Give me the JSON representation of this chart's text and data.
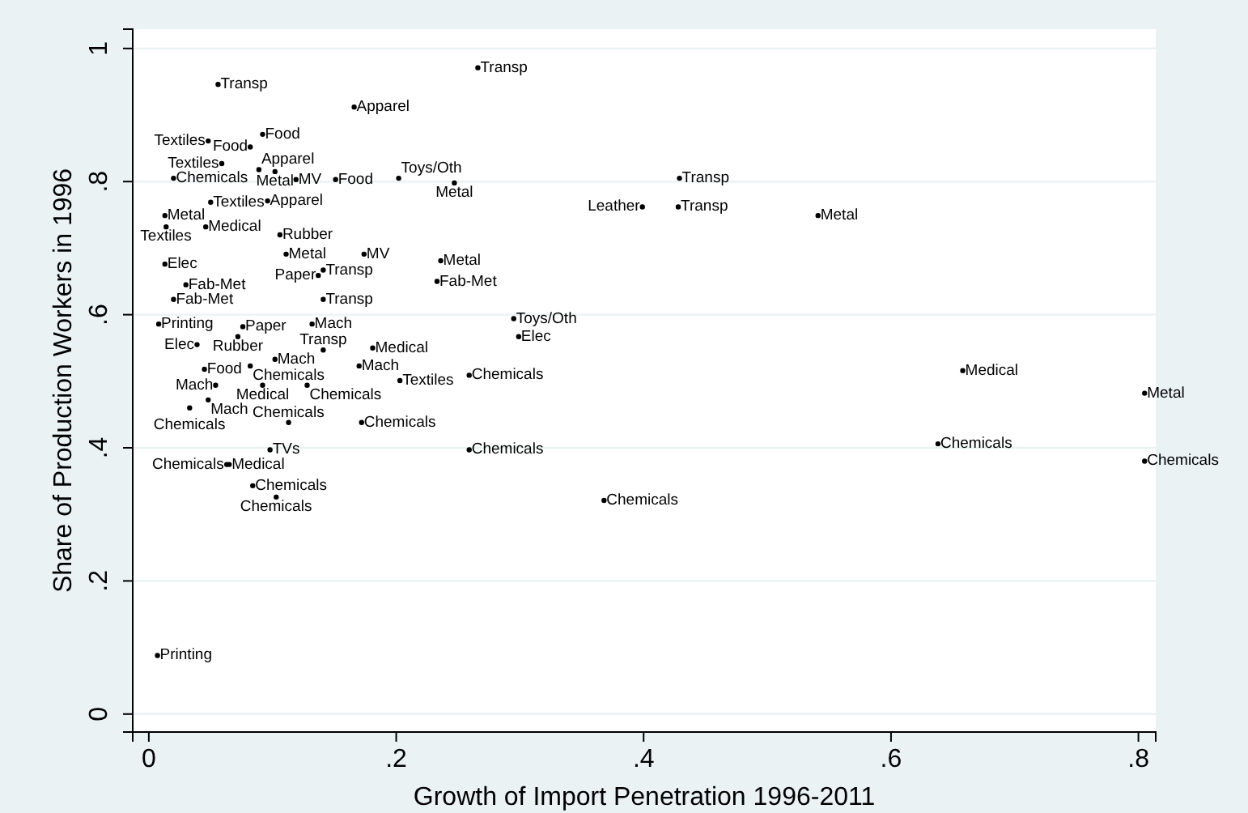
{
  "chart_data": {
    "type": "scatter",
    "xlabel": "Growth of Import Penetration 1996-2011",
    "ylabel": "Share of Production Workers in 1996",
    "xlim": [
      -0.013,
      0.814
    ],
    "ylim": [
      -0.027,
      1.029
    ],
    "xticks": [
      0,
      {
        "value": 0.2,
        "label": ".2"
      },
      {
        "value": 0.4,
        "label": ".4"
      },
      {
        "value": 0.6,
        "label": ".6"
      },
      {
        "value": 0.8,
        "label": ".8"
      }
    ],
    "yticks": [
      0,
      {
        "value": 0.2,
        "label": ".2"
      },
      {
        "value": 0.4,
        "label": ".4"
      },
      {
        "value": 0.6,
        "label": ".6"
      },
      {
        "value": 0.8,
        "label": ".8"
      },
      1
    ],
    "grid": "y",
    "marker": "circle",
    "series": [
      {
        "color": "#000000",
        "x": [
          0.056,
          0.166,
          0.266,
          0.048,
          0.092,
          0.082,
          0.059,
          0.089,
          0.102,
          0.02,
          0.119,
          0.151,
          0.202,
          0.247,
          0.429,
          0.399,
          0.428,
          0.541,
          0.096,
          0.05,
          0.174,
          0.236,
          0.233,
          0.295,
          0.299,
          0.259,
          0.658,
          0.805,
          0.638,
          0.805,
          0.259,
          0.368,
          0.013,
          0.014,
          0.046,
          0.106,
          0.111,
          0.013,
          0.03,
          0.02,
          0.008,
          0.076,
          0.072,
          0.039,
          0.141,
          0.137,
          0.141,
          0.132,
          0.045,
          0.082,
          0.102,
          0.141,
          0.181,
          0.17,
          0.054,
          0.092,
          0.128,
          0.203,
          0.048,
          0.033,
          0.113,
          0.172,
          0.098,
          0.063,
          0.065,
          0.084,
          0.103,
          0.007
        ],
        "values": [
          0.946,
          0.912,
          0.971,
          0.861,
          0.871,
          0.852,
          0.827,
          0.818,
          0.815,
          0.805,
          0.803,
          0.803,
          0.805,
          0.798,
          0.805,
          0.762,
          0.762,
          0.749,
          0.771,
          0.769,
          0.691,
          0.681,
          0.65,
          0.594,
          0.567,
          0.509,
          0.516,
          0.482,
          0.406,
          0.38,
          0.397,
          0.321,
          0.749,
          0.732,
          0.732,
          0.72,
          0.691,
          0.676,
          0.645,
          0.623,
          0.586,
          0.582,
          0.567,
          0.555,
          0.667,
          0.659,
          0.623,
          0.586,
          0.518,
          0.523,
          0.533,
          0.547,
          0.55,
          0.523,
          0.494,
          0.494,
          0.494,
          0.501,
          0.472,
          0.46,
          0.438,
          0.438,
          0.397,
          0.375,
          0.375,
          0.343,
          0.326,
          0.088
        ],
        "value_labels": [
          "Transp",
          "Apparel",
          "Transp",
          "Textiles",
          "Food",
          "Food",
          "Textiles",
          "Apparel",
          "Metal",
          "Chemicals",
          "MV",
          "Food",
          "Toys/Oth",
          "Metal",
          "Transp",
          "Leather",
          "Transp",
          "Metal",
          "Apparel",
          "Textiles",
          "MV",
          "Metal",
          "Fab-Met",
          "Toys/Oth",
          "Elec",
          "Chemicals",
          "Medical",
          "Metal",
          "Chemicals",
          "Chemicals",
          "Chemicals",
          "Chemicals",
          "Metal",
          "Textiles",
          "Medical",
          "Rubber",
          "Metal",
          "Elec",
          "Fab-Met",
          "Fab-Met",
          "Printing",
          "Paper",
          "Rubber",
          "Elec",
          "Transp",
          "Paper",
          "Transp",
          "Mach",
          "Food",
          "Chemicals",
          "Mach",
          "Transp",
          "Medical",
          "Mach",
          "Mach",
          "Medical",
          "Chemicals",
          "Textiles",
          "Mach",
          "Chemicals",
          "Chemicals",
          "Chemicals",
          "TVs",
          "Chemicals",
          "Medical",
          "Chemicals",
          "Chemicals",
          "Printing"
        ]
      }
    ]
  }
}
